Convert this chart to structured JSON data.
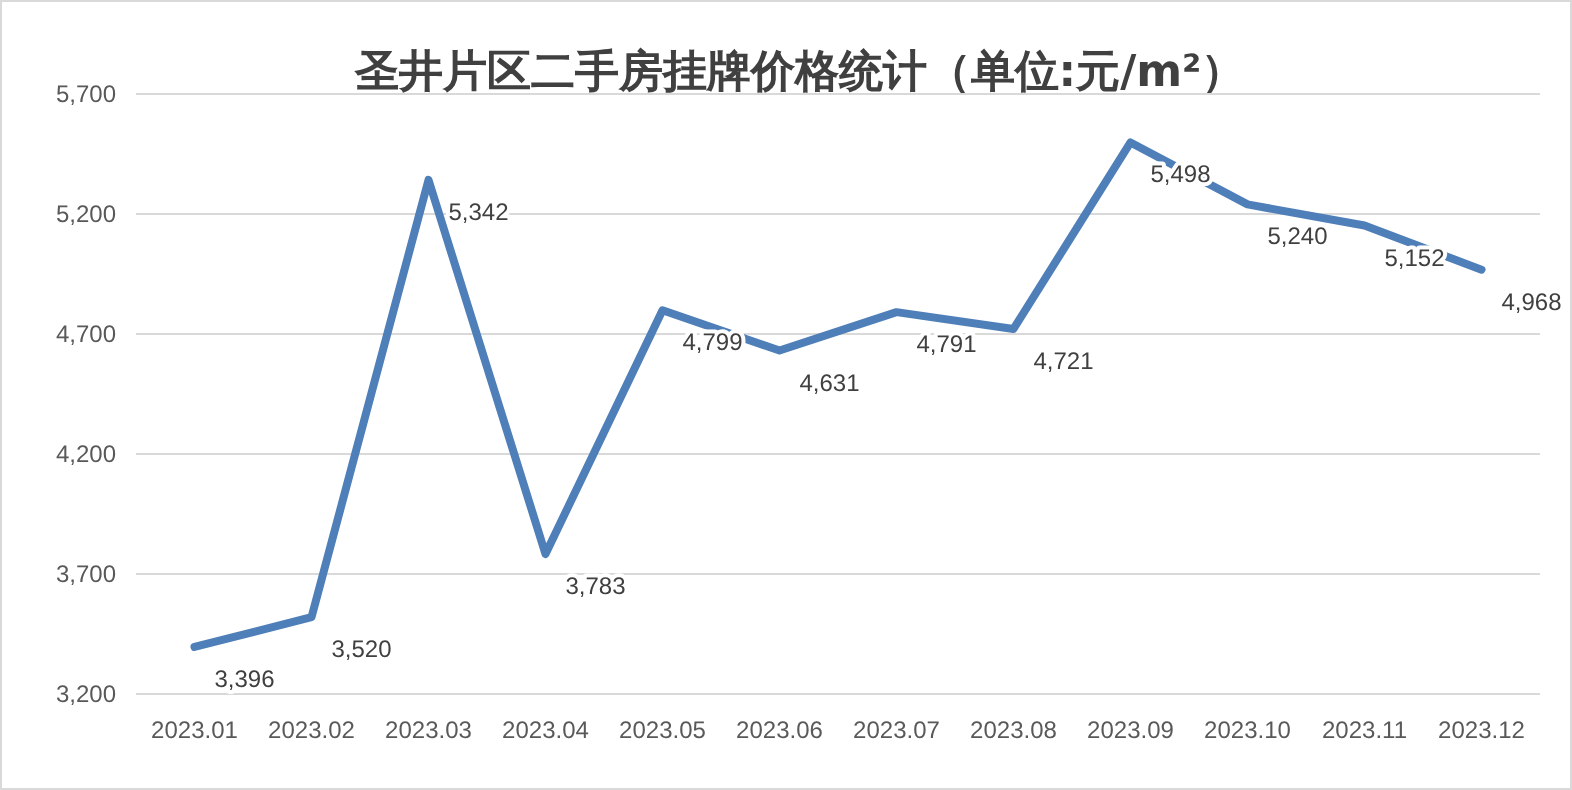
{
  "chart_data": {
    "type": "line",
    "title": "圣井片区二手房挂牌价格统计（单位:元/m²）",
    "categories": [
      "2023.01",
      "2023.02",
      "2023.03",
      "2023.04",
      "2023.05",
      "2023.06",
      "2023.07",
      "2023.08",
      "2023.09",
      "2023.10",
      "2023.11",
      "2023.12"
    ],
    "series": [
      {
        "color": "#4f7fb8",
        "values": [
          3396,
          3520,
          5342,
          3783,
          4799,
          4631,
          4791,
          4721,
          5498,
          5240,
          5152,
          4968
        ],
        "value_labels": [
          "3,396",
          "3,520",
          "5,342",
          "3,783",
          "4,799",
          "4,631",
          "4,791",
          "4,721",
          "5,498",
          "5,240",
          "5,152",
          "4,968"
        ]
      }
    ],
    "ylim": [
      3200,
      5700
    ],
    "yticks": [
      {
        "value": 3200,
        "label": "3,200"
      },
      {
        "value": 3700,
        "label": "3,700"
      },
      {
        "value": 4200,
        "label": "4,200"
      },
      {
        "value": 4700,
        "label": "4,700"
      },
      {
        "value": 5200,
        "label": "5,200"
      },
      {
        "value": 5700,
        "label": "5,700"
      }
    ],
    "grid": "y",
    "marker": "none",
    "line_style": "solid"
  }
}
